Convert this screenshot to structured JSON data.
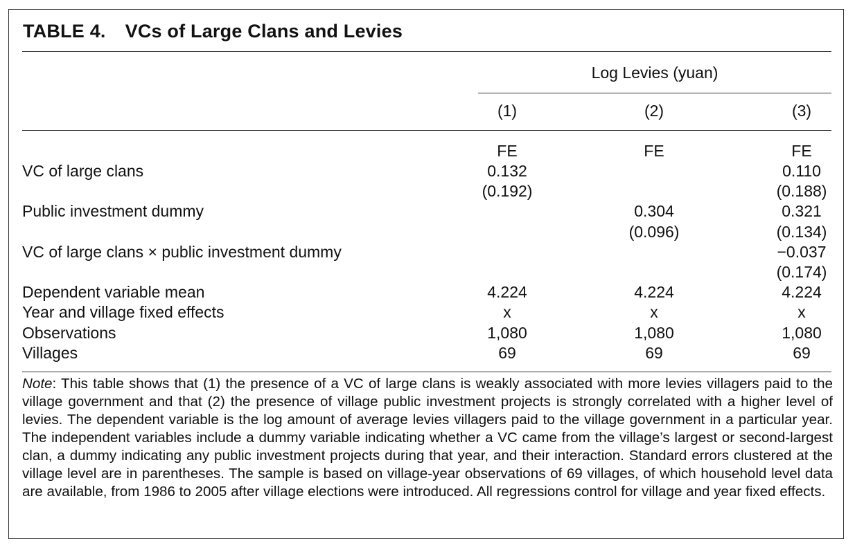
{
  "title": {
    "label": "TABLE 4.",
    "text": "VCs of Large Clans and Levies"
  },
  "header": {
    "dependent_variable": "Log Levies (yuan)",
    "columns": [
      "(1)",
      "(2)",
      "(3)"
    ]
  },
  "estimator": [
    "FE",
    "FE",
    "FE"
  ],
  "rows": [
    {
      "label": "VC of large clans",
      "values": [
        "0.132",
        "",
        "0.110"
      ]
    },
    {
      "label": "",
      "values": [
        "(0.192)",
        "",
        "(0.188)"
      ]
    },
    {
      "label": "Public investment dummy",
      "values": [
        "",
        "0.304",
        "0.321"
      ]
    },
    {
      "label": "",
      "values": [
        "",
        "(0.096)",
        "(0.134)"
      ]
    },
    {
      "label": "VC of large clans × public investment dummy",
      "values": [
        "",
        "",
        "−0.037"
      ]
    },
    {
      "label": "",
      "values": [
        "",
        "",
        "(0.174)"
      ]
    },
    {
      "label": "Dependent variable mean",
      "values": [
        "4.224",
        "4.224",
        "4.224"
      ]
    },
    {
      "label": "Year and village fixed effects",
      "values": [
        "x",
        "x",
        "x"
      ]
    },
    {
      "label": "Observations",
      "values": [
        "1,080",
        "1,080",
        "1,080"
      ]
    },
    {
      "label": "Villages",
      "values": [
        "69",
        "69",
        "69"
      ]
    }
  ],
  "note": {
    "lead": "Note",
    "text": ": This table shows that (1) the presence of a VC of large clans is weakly associated with more levies villagers paid to the village government and that (2) the presence of village public investment projects is strongly correlated with a higher level of levies. The dependent variable is the log amount of average levies villagers paid to the village government in a particular year. The independent variables include a dummy variable indicating whether a VC came from the village’s largest or second-largest clan, a dummy indicating any public investment projects during that year, and their interaction. Standard errors clustered at the village level are in parentheses. The sample is based on village-year observations of 69 villages, of which household level data are available, from 1986 to 2005 after village elections were introduced. All regressions control for village and year fixed effects."
  }
}
